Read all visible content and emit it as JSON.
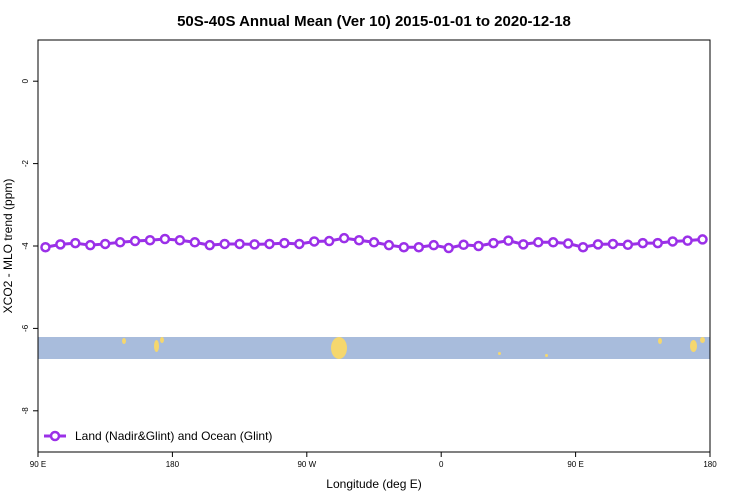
{
  "chart_data": {
    "type": "line",
    "title": "50S-40S Annual Mean (Ver 10)   2015-01-01 to 2020-12-18",
    "x_label": "Longitude (deg E)",
    "y_label": "XCO2 - MLO trend (ppm)",
    "x": [
      95,
      105,
      115,
      125,
      135,
      145,
      155,
      165,
      175,
      185,
      195,
      205,
      215,
      225,
      235,
      245,
      255,
      265,
      275,
      285,
      295,
      305,
      315,
      325,
      335,
      345,
      355,
      365,
      375,
      385,
      395,
      405,
      415,
      425,
      435,
      445,
      455,
      465,
      475,
      485,
      495,
      505,
      515,
      525,
      535
    ],
    "series": [
      {
        "name": "Land (Nadir&Glint) and Ocean (Glint)",
        "color": "#9b30e8",
        "values": [
          -4.03,
          -3.96,
          -3.93,
          -3.98,
          -3.95,
          -3.91,
          -3.88,
          -3.86,
          -3.83,
          -3.86,
          -3.91,
          -3.98,
          -3.95,
          -3.95,
          -3.96,
          -3.95,
          -3.93,
          -3.95,
          -3.89,
          -3.88,
          -3.81,
          -3.86,
          -3.91,
          -3.98,
          -4.03,
          -4.03,
          -3.98,
          -4.05,
          -3.97,
          -4.0,
          -3.93,
          -3.87,
          -3.96,
          -3.91,
          -3.91,
          -3.94,
          -4.03,
          -3.96,
          -3.95,
          -3.97,
          -3.93,
          -3.93,
          -3.89,
          -3.87,
          -3.84
        ]
      }
    ],
    "xlim": [
      90,
      540
    ],
    "xticks": [
      {
        "value": 90,
        "label": "90 E"
      },
      {
        "value": 180,
        "label": "180"
      },
      {
        "value": 270,
        "label": "90 W"
      },
      {
        "value": 360,
        "label": "0"
      },
      {
        "value": 450,
        "label": "90 E"
      },
      {
        "value": 540,
        "label": "180"
      }
    ],
    "ylim": [
      -9,
      1
    ],
    "yticks": [
      0,
      -2,
      -4,
      -6,
      -8
    ],
    "legend": "bottom-left"
  }
}
